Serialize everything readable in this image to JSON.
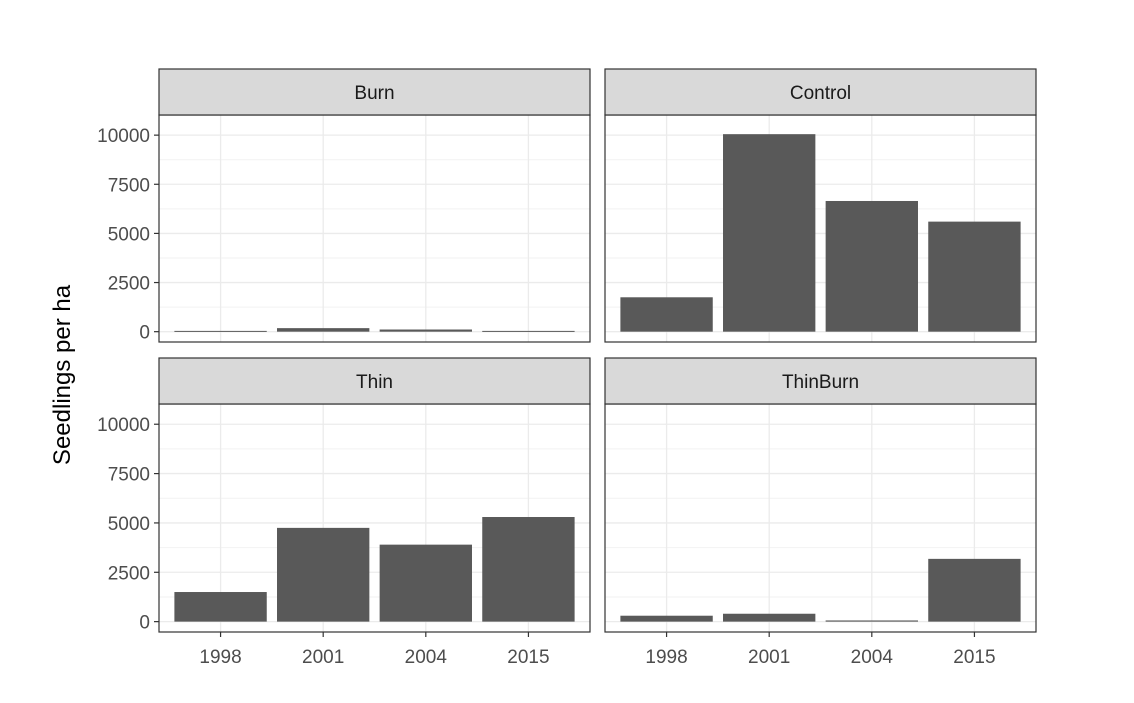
{
  "chart_data": {
    "type": "bar",
    "layout": "facet-grid 2x2",
    "ylabel": "Seedlings per ha",
    "xlabel": "",
    "categories": [
      "1998",
      "2001",
      "2004",
      "2015"
    ],
    "ylim": [
      0,
      10500
    ],
    "yticks": [
      0,
      2500,
      5000,
      7500,
      10000
    ],
    "ytick_labels": [
      "0",
      "2500",
      "5000",
      "7500",
      "10000"
    ],
    "grid": true,
    "bar_color": "#595959",
    "strip_color": "#d9d9d9",
    "panels": [
      {
        "name": "Burn",
        "values": [
          40,
          180,
          110,
          40
        ]
      },
      {
        "name": "Control",
        "values": [
          1750,
          10050,
          6650,
          5600
        ]
      },
      {
        "name": "Thin",
        "values": [
          1500,
          4750,
          3900,
          5300
        ]
      },
      {
        "name": "ThinBurn",
        "values": [
          300,
          400,
          60,
          3180
        ]
      }
    ]
  }
}
